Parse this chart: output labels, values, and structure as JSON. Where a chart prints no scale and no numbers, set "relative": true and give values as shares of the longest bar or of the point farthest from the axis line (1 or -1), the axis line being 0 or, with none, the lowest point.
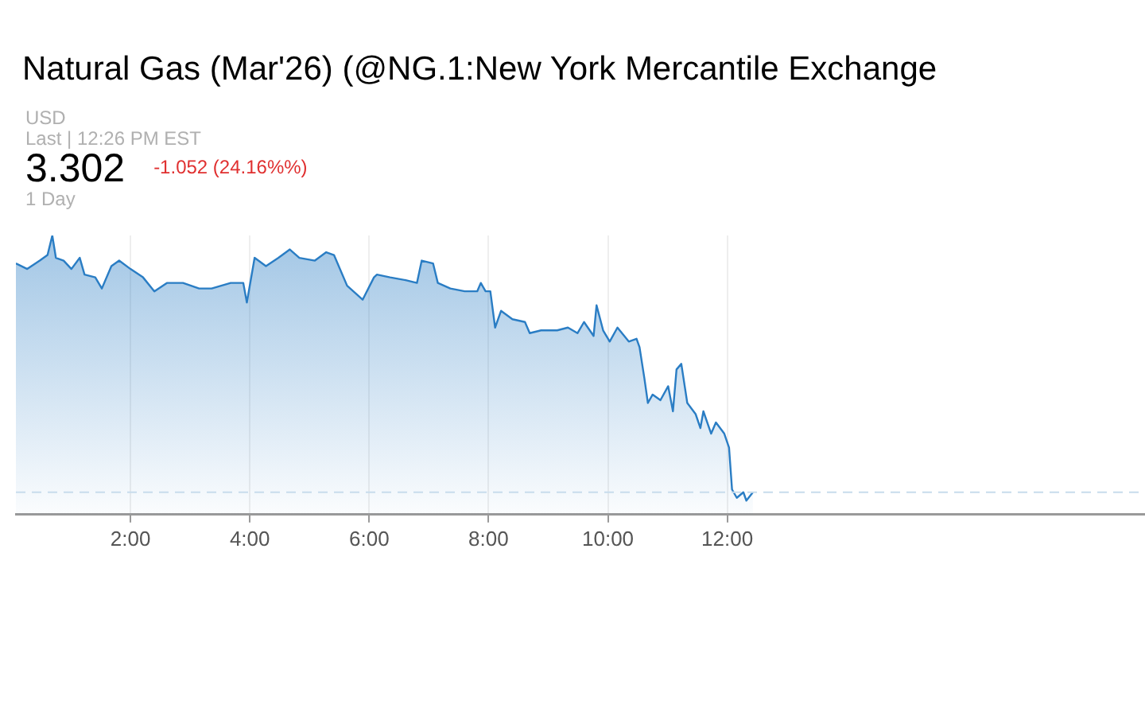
{
  "chart_data": {
    "type": "area",
    "title": "Natural Gas (Mar'26) (@NG.1:New York Mercantile Exchange",
    "annotations": [
      "USD",
      "Last | 12:26 PM EST",
      "3.302",
      "-1.052 (24.16%%)",
      "1 Day"
    ],
    "relative": true,
    "legend": false,
    "marker": "none",
    "grid": "x",
    "xlim": [
      0.08,
      19
    ],
    "xticks": [
      {
        "value": 2,
        "label": "2:00"
      },
      {
        "value": 4,
        "label": "4:00"
      },
      {
        "value": 6,
        "label": "6:00"
      },
      {
        "value": 8,
        "label": "8:00"
      },
      {
        "value": 10,
        "label": "10:00"
      },
      {
        "value": 12,
        "label": "12:00"
      }
    ],
    "ref_lines": [
      {
        "axis": "y",
        "value": 0.08,
        "label": null,
        "color": "#c8dcec",
        "line_style": "dashed"
      }
    ],
    "series": [
      {
        "color": "#2a7dc4",
        "x": [
          0.08,
          0.27,
          0.48,
          0.61,
          0.69,
          0.75,
          0.88,
          1.01,
          1.15,
          1.23,
          1.41,
          1.52,
          1.68,
          1.81,
          2.0,
          2.21,
          2.4,
          2.61,
          2.88,
          3.15,
          3.36,
          3.68,
          3.89,
          3.95,
          4.08,
          4.27,
          4.48,
          4.67,
          4.83,
          5.09,
          5.28,
          5.41,
          5.63,
          5.89,
          6.08,
          6.13,
          6.35,
          6.61,
          6.8,
          6.88,
          7.07,
          7.15,
          7.36,
          7.6,
          7.81,
          7.87,
          7.95,
          8.03,
          8.11,
          8.21,
          8.4,
          8.61,
          8.69,
          8.88,
          9.15,
          9.33,
          9.49,
          9.6,
          9.76,
          9.81,
          9.92,
          10.03,
          10.16,
          10.35,
          10.48,
          10.53,
          10.61,
          10.67,
          10.75,
          10.88,
          11.01,
          11.09,
          11.15,
          11.23,
          11.33,
          11.47,
          11.55,
          11.6,
          11.73,
          11.81,
          11.95,
          12.03,
          12.08,
          12.16,
          12.27,
          12.32,
          12.43
        ],
        "values": [
          0.9,
          0.88,
          0.91,
          0.93,
          1.0,
          0.92,
          0.91,
          0.88,
          0.92,
          0.86,
          0.85,
          0.81,
          0.89,
          0.91,
          0.88,
          0.85,
          0.8,
          0.83,
          0.83,
          0.81,
          0.81,
          0.83,
          0.83,
          0.76,
          0.92,
          0.89,
          0.92,
          0.95,
          0.92,
          0.91,
          0.94,
          0.93,
          0.82,
          0.77,
          0.85,
          0.86,
          0.85,
          0.84,
          0.83,
          0.91,
          0.9,
          0.83,
          0.81,
          0.8,
          0.8,
          0.83,
          0.8,
          0.8,
          0.67,
          0.73,
          0.7,
          0.69,
          0.65,
          0.66,
          0.66,
          0.67,
          0.65,
          0.69,
          0.64,
          0.75,
          0.66,
          0.62,
          0.67,
          0.62,
          0.63,
          0.6,
          0.49,
          0.4,
          0.43,
          0.41,
          0.46,
          0.37,
          0.52,
          0.54,
          0.4,
          0.36,
          0.31,
          0.37,
          0.29,
          0.33,
          0.29,
          0.24,
          0.09,
          0.06,
          0.08,
          0.05,
          0.08
        ]
      }
    ]
  }
}
